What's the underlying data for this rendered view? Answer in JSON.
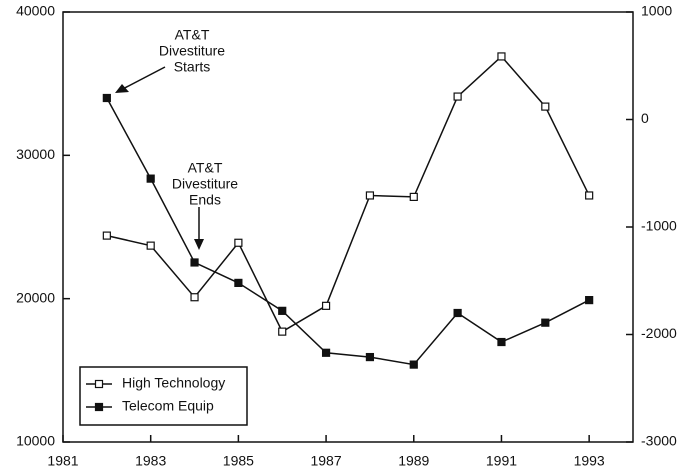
{
  "chart_data": {
    "type": "line",
    "x": [
      1982,
      1983,
      1984,
      1985,
      1986,
      1987,
      1988,
      1989,
      1990,
      1991,
      1992,
      1993
    ],
    "series": [
      {
        "name": "High Technology",
        "color": "#111111",
        "marker": "open-square",
        "values": [
          24400,
          23700,
          20100,
          23900,
          17700,
          19500,
          27200,
          27100,
          34100,
          36900,
          33400,
          27200
        ]
      },
      {
        "name": "Telecom Equip",
        "color": "#111111",
        "marker": "filled-square",
        "axis": "y2",
        "values": [
          200,
          -550,
          -1330,
          -1520,
          -1780,
          -2170,
          -2210,
          -2280,
          -1800,
          -2070,
          -1890,
          -1680
        ]
      }
    ],
    "annotations": [
      {
        "lines": [
          "AT&T",
          "Divestiture",
          "Starts"
        ]
      },
      {
        "lines": [
          "AT&T",
          "Divestiture",
          "Ends"
        ]
      }
    ],
    "xlim": [
      1981,
      1994
    ],
    "xticks": [
      1981,
      1983,
      1985,
      1987,
      1989,
      1991,
      1993
    ],
    "ylim": [
      10000,
      40000
    ],
    "yticks": [
      10000,
      20000,
      30000,
      40000
    ],
    "y2lim": [
      -3000,
      1000
    ],
    "y2ticks": [
      -3000,
      -2000,
      -1000,
      0,
      1000
    ],
    "legend": "lower left",
    "grid": false
  }
}
